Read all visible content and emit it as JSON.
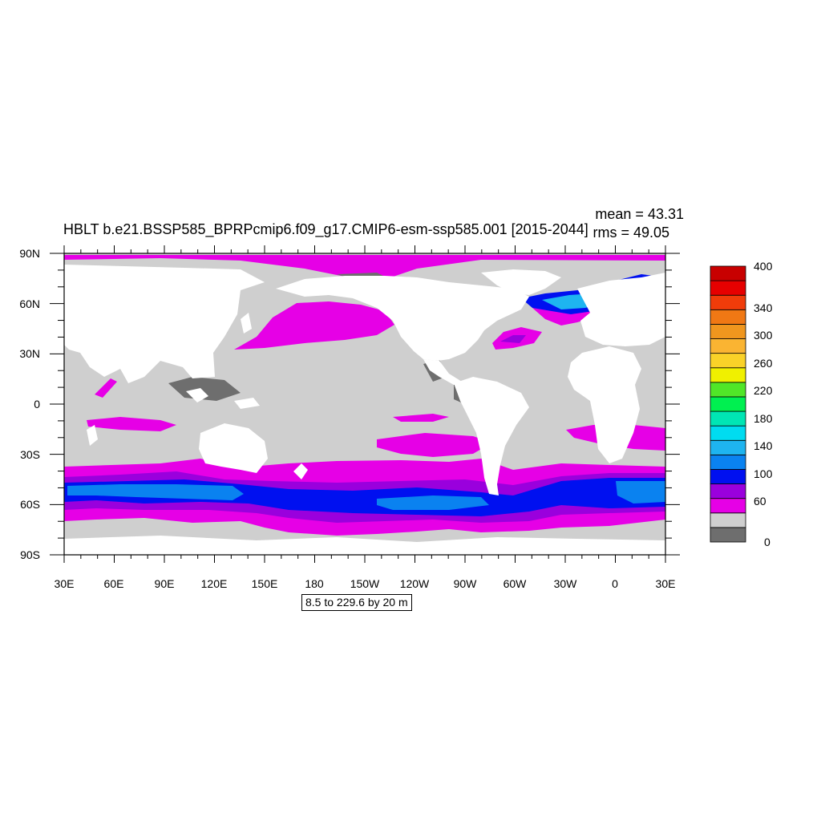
{
  "map": {
    "title": "HBLT b.e21.BSSP585_BPRPcmip6.f09_g17.CMIP6-esm-ssp585.001 [2015-2044]",
    "mean_text": "mean = 43.31",
    "rms_text": "rms = 49.05",
    "range_text": "8.5 to 229.6 by 20 m",
    "lat_ticks": [
      "90N",
      "60N",
      "30N",
      "0",
      "30S",
      "60S",
      "90S"
    ],
    "lon_ticks": [
      "30E",
      "60E",
      "90E",
      "120E",
      "150E",
      "180",
      "150W",
      "120W",
      "90W",
      "60W",
      "30W",
      "0",
      "30E"
    ],
    "colors": {
      "land": "#ffffff",
      "low_shade": "#6e6e6e",
      "ocean_base": "#cfcfcf",
      "magenta": "#e600e6",
      "purple": "#9a00dd",
      "blue": "#0010f0",
      "azure": "#0a82f0",
      "light_blue": "#1eb4f0"
    }
  },
  "colorbar": {
    "labels": [
      "400",
      "340",
      "300",
      "260",
      "220",
      "180",
      "140",
      "100",
      "60",
      "0"
    ],
    "colors": [
      "#6e6e6e",
      "#cfcfcf",
      "#e600e6",
      "#9a00dd",
      "#0010f0",
      "#0a82f0",
      "#1eb4f0",
      "#00dcf0",
      "#00e6b4",
      "#00f050",
      "#50e628",
      "#f0f000",
      "#fad228",
      "#fab432",
      "#f0961e",
      "#f07814",
      "#f03c0a",
      "#e60000",
      "#c80000"
    ]
  }
}
